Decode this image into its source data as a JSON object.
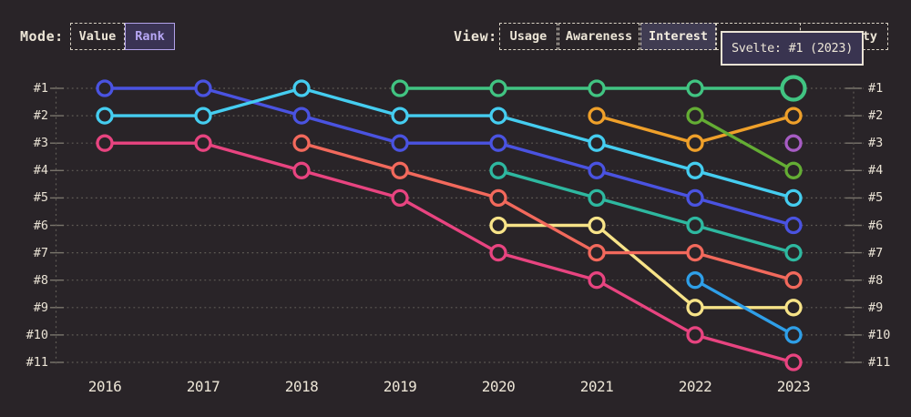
{
  "header": {
    "mode": {
      "label": "Mode:",
      "options": [
        {
          "label": "Value",
          "selected": false
        },
        {
          "label": "Rank",
          "selected": true
        }
      ]
    },
    "view": {
      "label": "View:",
      "options": [
        {
          "label": "Usage",
          "selected": false
        },
        {
          "label": "Awareness",
          "selected": false
        },
        {
          "label": "Interest",
          "selected": true
        },
        {
          "label": "ty",
          "selected": false
        }
      ]
    },
    "tooltip": "Svelte: #1 (2023)"
  },
  "chart_data": {
    "type": "line",
    "subtype": "bump-chart-of-ranks",
    "x": [
      "2016",
      "2017",
      "2018",
      "2019",
      "2020",
      "2021",
      "2022",
      "2023"
    ],
    "y_axis": {
      "rank_labels": [
        "#1",
        "#2",
        "#3",
        "#4",
        "#5",
        "#6",
        "#7",
        "#8",
        "#9",
        "#10",
        "#11"
      ],
      "best_rank": 1,
      "worst_rank": 11,
      "grid": true,
      "labels_on_both_sides": true
    },
    "series": [
      {
        "id": "blue",
        "color": "#4a53e1",
        "ranks": [
          1,
          1,
          2,
          3,
          3,
          4,
          5,
          6
        ]
      },
      {
        "id": "cyan",
        "color": "#45cdf0",
        "ranks": [
          2,
          2,
          1,
          2,
          2,
          3,
          4,
          5
        ]
      },
      {
        "id": "teal",
        "color": "#2eb8a0",
        "ranks": [
          null,
          null,
          null,
          null,
          4,
          5,
          6,
          7
        ]
      },
      {
        "id": "yellow",
        "color": "#f7e388",
        "ranks": [
          null,
          null,
          null,
          null,
          6,
          6,
          9,
          9
        ]
      },
      {
        "id": "orange",
        "color": "#efa02a",
        "ranks": [
          null,
          null,
          null,
          null,
          null,
          2,
          3,
          2
        ]
      },
      {
        "id": "olive-green",
        "color": "#64ad34",
        "ranks": [
          null,
          null,
          null,
          null,
          null,
          null,
          2,
          4
        ]
      },
      {
        "id": "dodger-blue",
        "color": "#2f9fe8",
        "ranks": [
          null,
          null,
          null,
          null,
          null,
          null,
          8,
          10
        ]
      },
      {
        "id": "purple",
        "color": "#a75cc4",
        "ranks": [
          null,
          null,
          null,
          null,
          null,
          null,
          null,
          3
        ]
      },
      {
        "id": "salmon",
        "color": "#f2695c",
        "ranks": [
          null,
          null,
          3,
          4,
          5,
          7,
          7,
          8
        ]
      },
      {
        "id": "pink",
        "color": "#e84480",
        "ranks": [
          3,
          3,
          4,
          5,
          7,
          8,
          10,
          11
        ]
      },
      {
        "id": "svelte",
        "name": "Svelte",
        "color": "#41c482",
        "ranks": [
          null,
          null,
          null,
          1,
          1,
          1,
          1,
          1
        ]
      }
    ],
    "highlight": {
      "series": "svelte",
      "x": "2023",
      "rank": 1,
      "label": "Svelte: #1 (2023)"
    }
  },
  "colors": {
    "background": "#292428",
    "text": "#ece5d6",
    "grid": "#5f5b55",
    "tick": "#79746b",
    "selected_mode_accent": "#b7a7f5",
    "tooltip_background": "#393450",
    "tooltip_border": "#eae3d5"
  }
}
